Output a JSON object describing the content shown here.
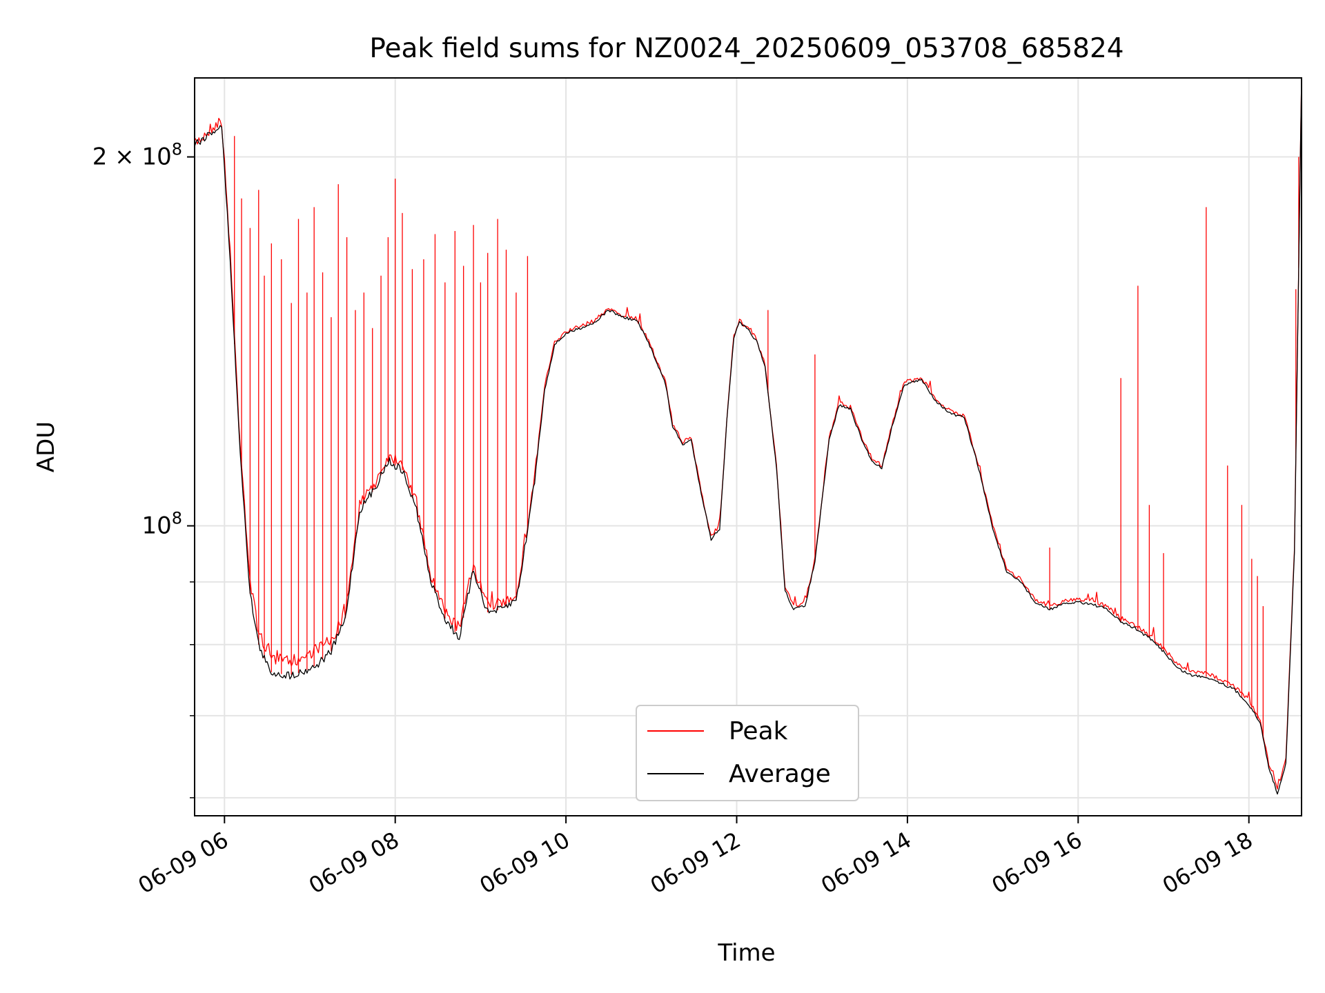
{
  "chart_data": {
    "type": "line",
    "title": "Peak field sums for NZ0024_20250609_053708_685824",
    "xlabel": "Time",
    "ylabel": "ADU",
    "x_scale": "time",
    "y_scale": "log",
    "xlim": [
      "2025-06-09 05:39",
      "2025-06-09 18:37"
    ],
    "ylim": [
      58000000,
      232000000
    ],
    "xticks": [
      "06-09 06",
      "06-09 08",
      "06-09 10",
      "06-09 12",
      "06-09 14",
      "06-09 16",
      "06-09 18"
    ],
    "yticks": [
      "2 × 10^8",
      "10^8"
    ],
    "grid": true,
    "legend_position": "lower-center",
    "series": [
      {
        "name": "Peak",
        "color": "#ff0000",
        "style": "spiky",
        "points": [
          [
            "2025-06-09 05:39",
            205000000
          ],
          [
            "2025-06-09 05:45",
            208000000
          ],
          [
            "2025-06-09 05:52",
            212000000
          ],
          [
            "2025-06-09 05:58",
            214000000
          ],
          [
            "2025-06-09 06:04",
            168000000
          ],
          [
            "2025-06-09 06:10",
            122000000
          ],
          [
            "2025-06-09 06:18",
            90000000
          ],
          [
            "2025-06-09 06:24",
            82000000
          ],
          [
            "2025-06-09 06:32",
            78000000
          ],
          [
            "2025-06-09 06:45",
            77500000
          ],
          [
            "2025-06-09 06:55",
            78000000
          ],
          [
            "2025-06-09 07:05",
            79500000
          ],
          [
            "2025-06-09 07:15",
            80500000
          ],
          [
            "2025-06-09 07:25",
            85000000
          ],
          [
            "2025-06-09 07:35",
            104000000
          ],
          [
            "2025-06-09 07:45",
            108000000
          ],
          [
            "2025-06-09 07:55",
            114000000
          ],
          [
            "2025-06-09 08:05",
            113000000
          ],
          [
            "2025-06-09 08:15",
            104000000
          ],
          [
            "2025-06-09 08:25",
            91000000
          ],
          [
            "2025-06-09 08:35",
            85000000
          ],
          [
            "2025-06-09 08:45",
            82500000
          ],
          [
            "2025-06-09 08:55",
            93000000
          ],
          [
            "2025-06-09 09:05",
            86000000
          ],
          [
            "2025-06-09 09:15",
            86500000
          ],
          [
            "2025-06-09 09:25",
            88000000
          ],
          [
            "2025-06-09 09:30",
            95000000
          ],
          [
            "2025-06-09 09:38",
            110000000
          ],
          [
            "2025-06-09 09:45",
            130000000
          ],
          [
            "2025-06-09 09:52",
            141000000
          ],
          [
            "2025-06-09 10:00",
            144000000
          ],
          [
            "2025-06-09 10:10",
            145500000
          ],
          [
            "2025-06-09 10:20",
            147000000
          ],
          [
            "2025-06-09 10:30",
            150500000
          ],
          [
            "2025-06-09 10:40",
            148500000
          ],
          [
            "2025-06-09 10:50",
            147500000
          ],
          [
            "2025-06-09 11:00",
            140000000
          ],
          [
            "2025-06-09 11:10",
            131000000
          ],
          [
            "2025-06-09 11:15",
            121000000
          ],
          [
            "2025-06-09 11:22",
            117000000
          ],
          [
            "2025-06-09 11:28",
            118000000
          ],
          [
            "2025-06-09 11:35",
            107000000
          ],
          [
            "2025-06-09 11:42",
            98000000
          ],
          [
            "2025-06-09 11:48",
            100000000
          ],
          [
            "2025-06-09 11:53",
            122000000
          ],
          [
            "2025-06-09 11:58",
            143000000
          ],
          [
            "2025-06-09 12:02",
            147000000
          ],
          [
            "2025-06-09 12:08",
            145000000
          ],
          [
            "2025-06-09 12:14",
            142000000
          ],
          [
            "2025-06-09 12:20",
            135000000
          ],
          [
            "2025-06-09 12:28",
            112000000
          ],
          [
            "2025-06-09 12:34",
            89000000
          ],
          [
            "2025-06-09 12:40",
            86000000
          ],
          [
            "2025-06-09 12:48",
            86500000
          ],
          [
            "2025-06-09 12:55",
            94000000
          ],
          [
            "2025-06-09 13:05",
            118000000
          ],
          [
            "2025-06-09 13:12",
            126000000
          ],
          [
            "2025-06-09 13:20",
            125000000
          ],
          [
            "2025-06-09 13:28",
            118000000
          ],
          [
            "2025-06-09 13:35",
            113500000
          ],
          [
            "2025-06-09 13:42",
            112000000
          ],
          [
            "2025-06-09 13:50",
            122000000
          ],
          [
            "2025-06-09 13:58",
            131000000
          ],
          [
            "2025-06-09 14:10",
            132000000
          ],
          [
            "2025-06-09 14:20",
            127000000
          ],
          [
            "2025-06-09 14:30",
            124000000
          ],
          [
            "2025-06-09 14:40",
            123000000
          ],
          [
            "2025-06-09 14:50",
            112000000
          ],
          [
            "2025-06-09 15:00",
            100000000
          ],
          [
            "2025-06-09 15:10",
            92000000
          ],
          [
            "2025-06-09 15:20",
            90500000
          ],
          [
            "2025-06-09 15:30",
            87000000
          ],
          [
            "2025-06-09 15:40",
            86000000
          ],
          [
            "2025-06-09 15:50",
            86800000
          ],
          [
            "2025-06-09 16:00",
            87200000
          ],
          [
            "2025-06-09 16:10",
            86800000
          ],
          [
            "2025-06-09 16:20",
            86000000
          ],
          [
            "2025-06-09 16:30",
            84000000
          ],
          [
            "2025-06-09 16:40",
            83000000
          ],
          [
            "2025-06-09 16:50",
            81500000
          ],
          [
            "2025-06-09 17:00",
            79500000
          ],
          [
            "2025-06-09 17:10",
            77000000
          ],
          [
            "2025-06-09 17:20",
            76000000
          ],
          [
            "2025-06-09 17:30",
            75800000
          ],
          [
            "2025-06-09 17:40",
            75000000
          ],
          [
            "2025-06-09 17:50",
            74000000
          ],
          [
            "2025-06-09 18:00",
            72000000
          ],
          [
            "2025-06-09 18:08",
            69500000
          ],
          [
            "2025-06-09 18:14",
            64000000
          ],
          [
            "2025-06-09 18:20",
            61000000
          ],
          [
            "2025-06-09 18:26",
            64500000
          ],
          [
            "2025-06-09 18:32",
            96000000
          ],
          [
            "2025-06-09 18:37",
            232000000
          ]
        ]
      },
      {
        "name": "Average",
        "color": "#000000",
        "style": "smooth",
        "points": [
          [
            "2025-06-09 05:39",
            205000000
          ],
          [
            "2025-06-09 05:45",
            207000000
          ],
          [
            "2025-06-09 05:52",
            210000000
          ],
          [
            "2025-06-09 05:58",
            212000000
          ],
          [
            "2025-06-09 06:04",
            165000000
          ],
          [
            "2025-06-09 06:10",
            120000000
          ],
          [
            "2025-06-09 06:18",
            88000000
          ],
          [
            "2025-06-09 06:24",
            80000000
          ],
          [
            "2025-06-09 06:32",
            76000000
          ],
          [
            "2025-06-09 06:45",
            75500000
          ],
          [
            "2025-06-09 06:55",
            76000000
          ],
          [
            "2025-06-09 07:05",
            77000000
          ],
          [
            "2025-06-09 07:15",
            79000000
          ],
          [
            "2025-06-09 07:25",
            84000000
          ],
          [
            "2025-06-09 07:35",
            103000000
          ],
          [
            "2025-06-09 07:45",
            107000000
          ],
          [
            "2025-06-09 07:55",
            113000000
          ],
          [
            "2025-06-09 08:05",
            111000000
          ],
          [
            "2025-06-09 08:15",
            103000000
          ],
          [
            "2025-06-09 08:25",
            90000000
          ],
          [
            "2025-06-09 08:35",
            84000000
          ],
          [
            "2025-06-09 08:45",
            81000000
          ],
          [
            "2025-06-09 08:55",
            92000000
          ],
          [
            "2025-06-09 09:05",
            85000000
          ],
          [
            "2025-06-09 09:15",
            85500000
          ],
          [
            "2025-06-09 09:25",
            87000000
          ],
          [
            "2025-06-09 09:30",
            94000000
          ],
          [
            "2025-06-09 09:38",
            109000000
          ],
          [
            "2025-06-09 09:45",
            129000000
          ],
          [
            "2025-06-09 09:52",
            140500000
          ],
          [
            "2025-06-09 10:00",
            143500000
          ],
          [
            "2025-06-09 10:10",
            145000000
          ],
          [
            "2025-06-09 10:20",
            146500000
          ],
          [
            "2025-06-09 10:30",
            150000000
          ],
          [
            "2025-06-09 10:40",
            148000000
          ],
          [
            "2025-06-09 10:50",
            147000000
          ],
          [
            "2025-06-09 11:00",
            139500000
          ],
          [
            "2025-06-09 11:10",
            130500000
          ],
          [
            "2025-06-09 11:15",
            120500000
          ],
          [
            "2025-06-09 11:22",
            116500000
          ],
          [
            "2025-06-09 11:28",
            117500000
          ],
          [
            "2025-06-09 11:35",
            106500000
          ],
          [
            "2025-06-09 11:42",
            97500000
          ],
          [
            "2025-06-09 11:48",
            99500000
          ],
          [
            "2025-06-09 11:53",
            121500000
          ],
          [
            "2025-06-09 11:58",
            142500000
          ],
          [
            "2025-06-09 12:02",
            146500000
          ],
          [
            "2025-06-09 12:08",
            144500000
          ],
          [
            "2025-06-09 12:14",
            141500000
          ],
          [
            "2025-06-09 12:20",
            134500000
          ],
          [
            "2025-06-09 12:28",
            111500000
          ],
          [
            "2025-06-09 12:34",
            88500000
          ],
          [
            "2025-06-09 12:40",
            85500000
          ],
          [
            "2025-06-09 12:48",
            86000000
          ],
          [
            "2025-06-09 12:55",
            93500000
          ],
          [
            "2025-06-09 13:05",
            117500000
          ],
          [
            "2025-06-09 13:12",
            125500000
          ],
          [
            "2025-06-09 13:20",
            124500000
          ],
          [
            "2025-06-09 13:28",
            117500000
          ],
          [
            "2025-06-09 13:35",
            113000000
          ],
          [
            "2025-06-09 13:42",
            111500000
          ],
          [
            "2025-06-09 13:50",
            121500000
          ],
          [
            "2025-06-09 13:58",
            130500000
          ],
          [
            "2025-06-09 14:10",
            131500000
          ],
          [
            "2025-06-09 14:20",
            126500000
          ],
          [
            "2025-06-09 14:30",
            123500000
          ],
          [
            "2025-06-09 14:40",
            122500000
          ],
          [
            "2025-06-09 14:50",
            111500000
          ],
          [
            "2025-06-09 15:00",
            99500000
          ],
          [
            "2025-06-09 15:10",
            91500000
          ],
          [
            "2025-06-09 15:20",
            90000000
          ],
          [
            "2025-06-09 15:30",
            86500000
          ],
          [
            "2025-06-09 15:40",
            85500000
          ],
          [
            "2025-06-09 15:50",
            86300000
          ],
          [
            "2025-06-09 16:00",
            86700000
          ],
          [
            "2025-06-09 16:10",
            86300000
          ],
          [
            "2025-06-09 16:20",
            85500000
          ],
          [
            "2025-06-09 16:30",
            83500000
          ],
          [
            "2025-06-09 16:40",
            82500000
          ],
          [
            "2025-06-09 16:50",
            81000000
          ],
          [
            "2025-06-09 17:00",
            79000000
          ],
          [
            "2025-06-09 17:10",
            76500000
          ],
          [
            "2025-06-09 17:20",
            75500000
          ],
          [
            "2025-06-09 17:30",
            75300000
          ],
          [
            "2025-06-09 17:40",
            74500000
          ],
          [
            "2025-06-09 17:50",
            73500000
          ],
          [
            "2025-06-09 18:00",
            71500000
          ],
          [
            "2025-06-09 18:08",
            69000000
          ],
          [
            "2025-06-09 18:14",
            63500000
          ],
          [
            "2025-06-09 18:20",
            60500000
          ],
          [
            "2025-06-09 18:26",
            64000000
          ],
          [
            "2025-06-09 18:32",
            95000000
          ],
          [
            "2025-06-09 18:37",
            232000000
          ]
        ]
      }
    ],
    "spikes": [
      [
        "2025-06-09 06:07",
        208000000
      ],
      [
        "2025-06-09 06:12",
        185000000
      ],
      [
        "2025-06-09 06:18",
        175000000
      ],
      [
        "2025-06-09 06:24",
        188000000
      ],
      [
        "2025-06-09 06:28",
        160000000
      ],
      [
        "2025-06-09 06:33",
        170000000
      ],
      [
        "2025-06-09 06:40",
        165000000
      ],
      [
        "2025-06-09 06:47",
        152000000
      ],
      [
        "2025-06-09 06:52",
        178000000
      ],
      [
        "2025-06-09 06:58",
        155000000
      ],
      [
        "2025-06-09 07:03",
        182000000
      ],
      [
        "2025-06-09 07:09",
        161000000
      ],
      [
        "2025-06-09 07:15",
        148000000
      ],
      [
        "2025-06-09 07:20",
        190000000
      ],
      [
        "2025-06-09 07:26",
        172000000
      ],
      [
        "2025-06-09 07:32",
        150000000
      ],
      [
        "2025-06-09 07:38",
        155000000
      ],
      [
        "2025-06-09 07:44",
        145000000
      ],
      [
        "2025-06-09 07:50",
        160000000
      ],
      [
        "2025-06-09 07:55",
        172000000
      ],
      [
        "2025-06-09 08:00",
        192000000
      ],
      [
        "2025-06-09 08:05",
        180000000
      ],
      [
        "2025-06-09 08:12",
        162000000
      ],
      [
        "2025-06-09 08:20",
        165000000
      ],
      [
        "2025-06-09 08:28",
        173000000
      ],
      [
        "2025-06-09 08:35",
        158000000
      ],
      [
        "2025-06-09 08:42",
        174000000
      ],
      [
        "2025-06-09 08:48",
        163000000
      ],
      [
        "2025-06-09 08:55",
        176000000
      ],
      [
        "2025-06-09 09:00",
        158000000
      ],
      [
        "2025-06-09 09:05",
        167000000
      ],
      [
        "2025-06-09 09:12",
        178000000
      ],
      [
        "2025-06-09 09:18",
        168000000
      ],
      [
        "2025-06-09 09:25",
        155000000
      ],
      [
        "2025-06-09 09:33",
        166000000
      ],
      [
        "2025-06-09 12:22",
        150000000
      ],
      [
        "2025-06-09 12:55",
        138000000
      ],
      [
        "2025-06-09 15:40",
        96000000
      ],
      [
        "2025-06-09 16:30",
        132000000
      ],
      [
        "2025-06-09 16:42",
        157000000
      ],
      [
        "2025-06-09 16:50",
        104000000
      ],
      [
        "2025-06-09 17:00",
        95000000
      ],
      [
        "2025-06-09 17:30",
        182000000
      ],
      [
        "2025-06-09 17:45",
        112000000
      ],
      [
        "2025-06-09 17:55",
        104000000
      ],
      [
        "2025-06-09 18:02",
        94000000
      ],
      [
        "2025-06-09 18:06",
        91000000
      ],
      [
        "2025-06-09 18:10",
        86000000
      ],
      [
        "2025-06-09 18:33",
        156000000
      ],
      [
        "2025-06-09 18:35",
        200000000
      ]
    ]
  }
}
